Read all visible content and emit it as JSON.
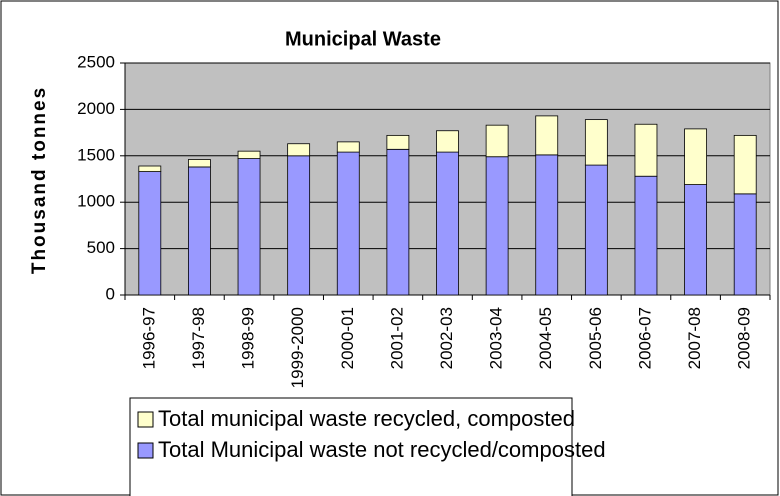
{
  "chart_data": {
    "type": "bar",
    "stacked": true,
    "title": "Municipal Waste",
    "y_label": "Thousand tonnes",
    "categories": [
      "1996-97",
      "1997-98",
      "1998-99",
      "1999-2000",
      "2000-01",
      "2001-02",
      "2002-03",
      "2003-04",
      "2004-05",
      "2005-06",
      "2006-07",
      "2007-08",
      "2008-09"
    ],
    "series": [
      {
        "name": "Total Municipal waste not recycled/composted",
        "color": "#9999ff",
        "values": [
          1330,
          1380,
          1470,
          1500,
          1540,
          1570,
          1540,
          1490,
          1510,
          1400,
          1280,
          1190,
          1090
        ]
      },
      {
        "name": "Total municipal waste recycled, composted",
        "color": "#ffffcc",
        "values": [
          60,
          80,
          80,
          130,
          110,
          150,
          230,
          340,
          420,
          490,
          560,
          600,
          630
        ]
      }
    ],
    "ylim": [
      0,
      2500
    ],
    "yticks": [
      0,
      500,
      1000,
      1500,
      2000,
      2500
    ],
    "grid": true,
    "plot_background": "#c0c0c0",
    "legend": "bottom"
  }
}
